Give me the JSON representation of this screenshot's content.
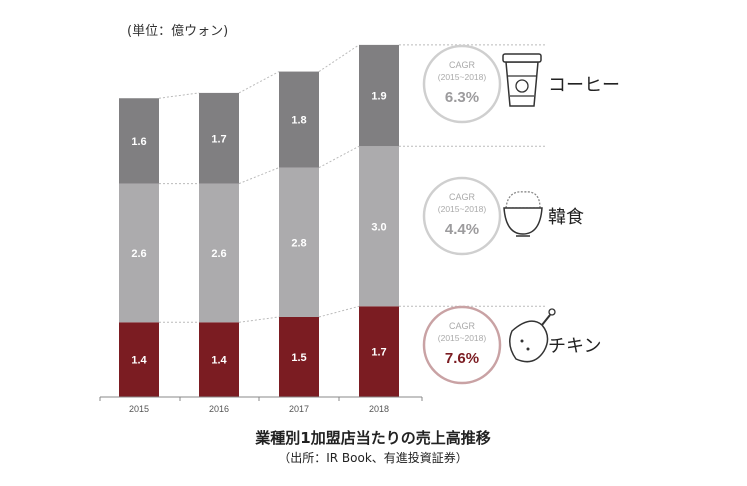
{
  "colors": {
    "coffee": "#807f81",
    "korean": "#acabad",
    "chicken": "#7b1c22",
    "cagr_highlight": "#7b1c22",
    "cagr_normal": "#9c9b9d",
    "circle_normal": "#cfcfcf",
    "circle_highlight": "#c9a2a4",
    "connector": "#bbbbbb"
  },
  "chart_data": {
    "type": "bar",
    "stacked": true,
    "unit_label": "(単位：億ウォン)",
    "categories": [
      "2015",
      "2016",
      "2017",
      "2018"
    ],
    "series": [
      {
        "name": "チキン",
        "key": "chicken",
        "values": [
          1.4,
          1.4,
          1.5,
          1.7
        ]
      },
      {
        "name": "韓食",
        "key": "korean",
        "values": [
          2.6,
          2.6,
          2.8,
          3.0
        ]
      },
      {
        "name": "コーヒー",
        "key": "coffee",
        "values": [
          1.6,
          1.7,
          1.8,
          1.9
        ]
      }
    ],
    "value_labels": {
      "chicken": [
        "1.4",
        "1.4",
        "1.5",
        "1.7"
      ],
      "korean": [
        "2.6",
        "2.6",
        "2.8",
        "3.0"
      ],
      "coffee": [
        "1.6",
        "1.7",
        "1.8",
        "1.9"
      ]
    },
    "cagr": [
      {
        "key": "coffee",
        "category": "コーヒー",
        "title": "CAGR",
        "period": "(2015~2018)",
        "value": "6.3%",
        "icon": "coffee-cup-icon",
        "highlight": false
      },
      {
        "key": "korean",
        "category": "韓食",
        "title": "CAGR",
        "period": "(2015~2018)",
        "value": "4.4%",
        "icon": "rice-bowl-icon",
        "highlight": false
      },
      {
        "key": "chicken",
        "category": "チキン",
        "title": "CAGR",
        "period": "(2015~2018)",
        "value": "7.6%",
        "icon": "chicken-icon",
        "highlight": true
      }
    ]
  },
  "caption": {
    "title": "業種別1加盟店当たりの売上高推移",
    "source": "（出所：IR Book、有進投資証券）"
  }
}
